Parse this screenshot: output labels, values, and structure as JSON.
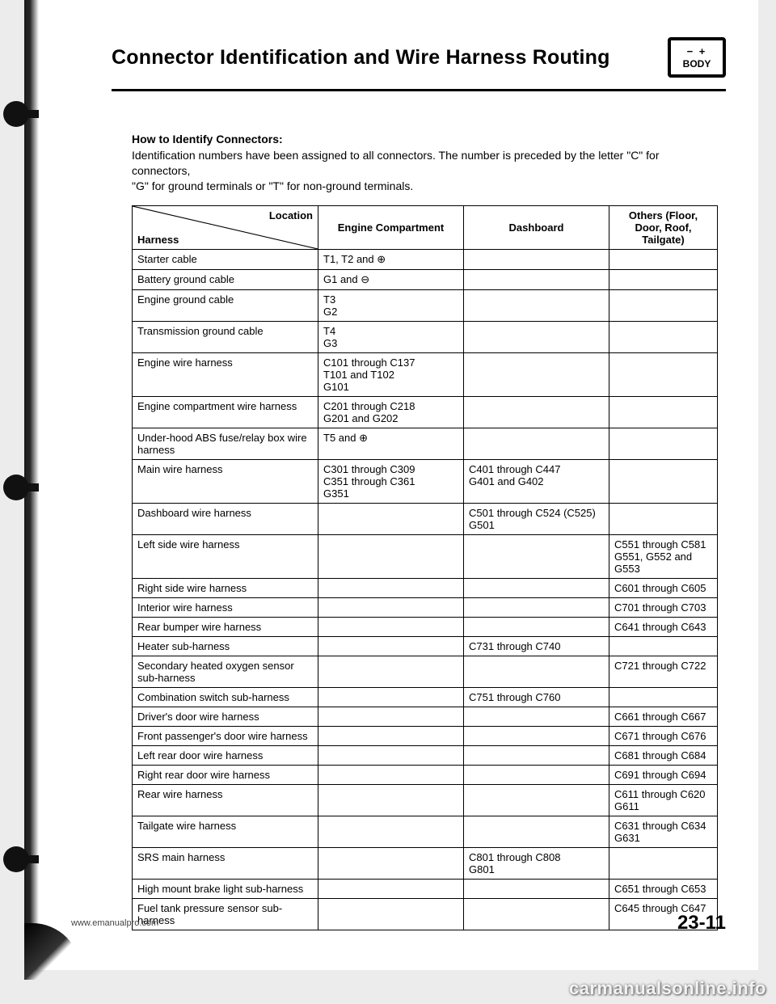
{
  "header": {
    "title": "Connector Identification and Wire Harness Routing",
    "icon_sym": "−  +",
    "icon_label": "BODY"
  },
  "how": {
    "heading": "How to Identify Connectors:",
    "text1": "Identification numbers have been assigned to all connectors. The number is preceded by the letter \"C\" for connectors,",
    "text2": "\"G\" for ground terminals or \"T\" for non-ground terminals."
  },
  "table": {
    "head": {
      "location": "Location",
      "harness": "Harness",
      "engine": "Engine Compartment",
      "dashboard": "Dashboard",
      "others": "Others (Floor, Door, Roof, Tailgate)"
    },
    "rows": [
      {
        "h": "Starter cable",
        "e": "T1, T2 and ⊕",
        "d": "",
        "o": ""
      },
      {
        "h": "Battery ground cable",
        "e": "G1 and ⊖",
        "d": "",
        "o": ""
      },
      {
        "h": "Engine ground cable",
        "e": "T3\nG2",
        "d": "",
        "o": ""
      },
      {
        "h": "Transmission ground cable",
        "e": "T4\nG3",
        "d": "",
        "o": ""
      },
      {
        "h": "Engine wire harness",
        "e": "C101 through C137\nT101 and T102\nG101",
        "d": "",
        "o": ""
      },
      {
        "h": "Engine compartment wire harness",
        "e": "C201 through C218\nG201 and G202",
        "d": "",
        "o": ""
      },
      {
        "h": "Under-hood ABS fuse/relay box wire harness",
        "e": "T5 and ⊕",
        "d": "",
        "o": ""
      },
      {
        "h": "Main wire harness",
        "e": "C301 through C309\nC351 through C361\nG351",
        "d": "C401 through C447\nG401 and G402",
        "o": ""
      },
      {
        "h": "Dashboard wire harness",
        "e": "",
        "d": "C501 through C524 (C525)\nG501",
        "o": ""
      },
      {
        "h": "Left side wire harness",
        "e": "",
        "d": "",
        "o": "C551 through C581\nG551, G552 and G553"
      },
      {
        "h": "Right side wire harness",
        "e": "",
        "d": "",
        "o": "C601 through C605"
      },
      {
        "h": "Interior wire harness",
        "e": "",
        "d": "",
        "o": "C701 through C703"
      },
      {
        "h": "Rear bumper wire harness",
        "e": "",
        "d": "",
        "o": "C641 through C643"
      },
      {
        "h": "Heater sub-harness",
        "e": "",
        "d": "C731 through C740",
        "o": ""
      },
      {
        "h": "Secondary heated oxygen sensor sub-harness",
        "e": "",
        "d": "",
        "o": "C721 through C722"
      },
      {
        "h": "Combination switch sub-harness",
        "e": "",
        "d": "C751 through C760",
        "o": ""
      },
      {
        "h": "Driver's door wire harness",
        "e": "",
        "d": "",
        "o": "C661 through C667"
      },
      {
        "h": "Front passenger's door wire harness",
        "e": "",
        "d": "",
        "o": "C671 through C676"
      },
      {
        "h": "Left rear door wire harness",
        "e": "",
        "d": "",
        "o": "C681 through C684"
      },
      {
        "h": "Right rear door wire harness",
        "e": "",
        "d": "",
        "o": "C691 through C694"
      },
      {
        "h": "Rear wire harness",
        "e": "",
        "d": "",
        "o": "C611 through C620\nG611"
      },
      {
        "h": "Tailgate wire harness",
        "e": "",
        "d": "",
        "o": "C631 through C634\nG631"
      },
      {
        "h": "SRS main harness",
        "e": "",
        "d": "C801 through C808\nG801",
        "o": ""
      },
      {
        "h": "High mount brake light sub-harness",
        "e": "",
        "d": "",
        "o": "C651 through C653"
      },
      {
        "h": "Fuel tank pressure sensor sub-harness",
        "e": "",
        "d": "",
        "o": "C645 through C647"
      }
    ]
  },
  "footer": {
    "left": "www.emanualpro.com",
    "right": "23-11",
    "watermark": "carmanualsonline.info"
  },
  "colors": {
    "page_bg": "#ffffff",
    "body_bg": "#ececec",
    "border": "#000000"
  }
}
